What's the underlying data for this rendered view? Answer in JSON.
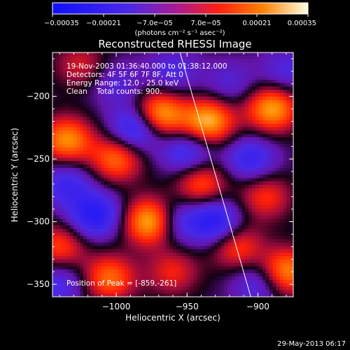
{
  "chart_data": {
    "type": "heatmap",
    "title": "Reconstructed RHESSI Image",
    "xlabel": "Heliocentric X (arcsec)",
    "ylabel": "Heliocentric Y (arcsec)",
    "xlim": [
      -1045,
      -875
    ],
    "ylim": [
      -360,
      -165
    ],
    "x_ticks": [
      -1000,
      -950,
      -900
    ],
    "x_tick_labels": [
      "−1000",
      "−950",
      "−900"
    ],
    "y_ticks": [
      -350,
      -300,
      -250,
      -200
    ],
    "y_tick_labels": [
      "−350",
      "−300",
      "−250",
      "−200"
    ],
    "colorbar": {
      "range": [
        -0.00035,
        0.00035
      ],
      "ticks": [
        -0.00035,
        -0.00021,
        -7e-05,
        7e-05,
        0.00021,
        0.00035
      ],
      "tick_labels": [
        "−0.00035",
        "−0.00021",
        "−7.0e−05",
        "7.0e−05",
        "0.00021",
        "0.00035"
      ],
      "unit_label": "(photons cm⁻² s⁻¹ asec⁻²)"
    },
    "annotations": [
      "19-Nov-2003 01:36:40.000 to 01:38:12.000",
      "Detectors: 4F 5F 6F 7F 8F, Att 0",
      "Energy Range: 12.0 - 25.0 keV",
      "Clean    Total counts: 900."
    ],
    "peak_label": "Position of Peak = [-859,-261]",
    "timestamp": "29-May-2013 06:17",
    "limb_line": {
      "x": [
        -955,
        -905
      ],
      "y": [
        -165,
        -360
      ]
    },
    "peaks": [
      {
        "x": -975,
        "y": -300,
        "value": 0.00035
      },
      {
        "x": -970,
        "y": -215,
        "value": 0.00032
      },
      {
        "x": -935,
        "y": -220,
        "value": 0.0003
      },
      {
        "x": -890,
        "y": -210,
        "value": 0.00028
      },
      {
        "x": -1035,
        "y": -235,
        "value": 0.00026
      },
      {
        "x": -880,
        "y": -340,
        "value": 0.00026
      },
      {
        "x": -1000,
        "y": -250,
        "value": 0.00022
      },
      {
        "x": -1005,
        "y": -345,
        "value": 0.00022
      },
      {
        "x": -940,
        "y": -270,
        "value": 0.0002
      },
      {
        "x": -1040,
        "y": -320,
        "value": 0.00018
      },
      {
        "x": -915,
        "y": -320,
        "value": 0.00018
      },
      {
        "x": -895,
        "y": -280,
        "value": 0.00016
      },
      {
        "x": -960,
        "y": -340,
        "value": 0.00014
      },
      {
        "x": -1025,
        "y": -175,
        "value": 0.00012
      },
      {
        "x": -985,
        "y": -225,
        "value": -0.00026
      },
      {
        "x": -1015,
        "y": -295,
        "value": -0.00024
      },
      {
        "x": -950,
        "y": -245,
        "value": -0.00018
      },
      {
        "x": -930,
        "y": -300,
        "value": -0.00024
      },
      {
        "x": -960,
        "y": -300,
        "value": -0.00018
      },
      {
        "x": -905,
        "y": -250,
        "value": -0.00018
      },
      {
        "x": -1035,
        "y": -270,
        "value": -0.00016
      },
      {
        "x": -900,
        "y": -350,
        "value": -0.00014
      },
      {
        "x": -1040,
        "y": -350,
        "value": -0.00014
      },
      {
        "x": -960,
        "y": -180,
        "value": -0.00012
      },
      {
        "x": -880,
        "y": -180,
        "value": -0.00012
      },
      {
        "x": -920,
        "y": -190,
        "value": -0.0001
      },
      {
        "x": -1000,
        "y": -190,
        "value": -0.0001
      }
    ]
  }
}
